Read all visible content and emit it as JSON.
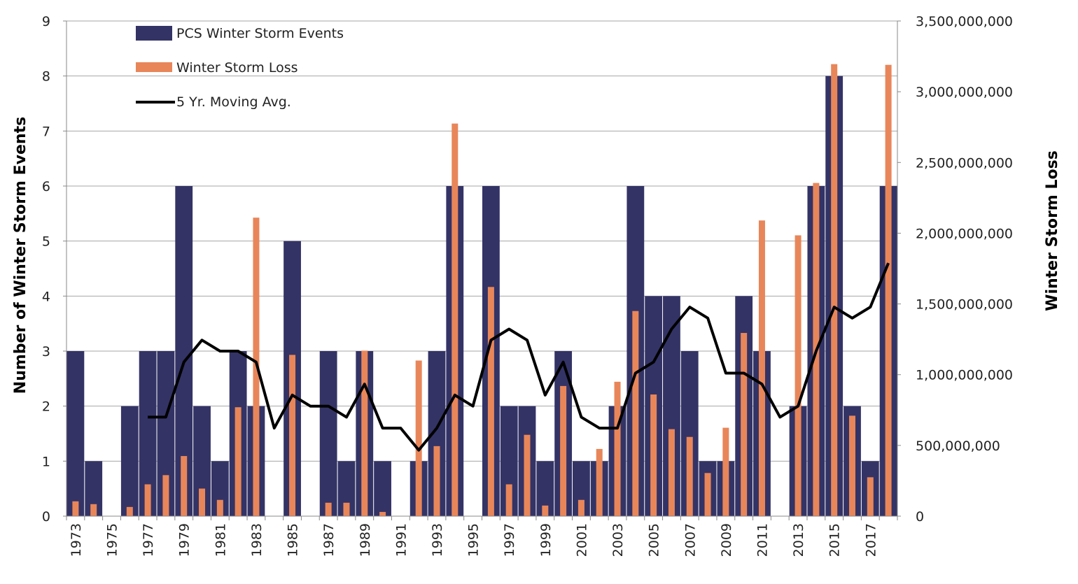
{
  "chart_data": {
    "type": "bar",
    "title": "",
    "ylabel": "Number of Winter Storm Events",
    "y2label": "Winter Storm Loss",
    "ylim": [
      0,
      9
    ],
    "y2lim": [
      0,
      3500000000
    ],
    "y_ticks": [
      "0",
      "1",
      "2",
      "3",
      "4",
      "5",
      "6",
      "7",
      "8",
      "9"
    ],
    "y2_ticks": [
      "0",
      "500,000,000",
      "1,000,000,000",
      "1,500,000,000",
      "2,000,000,000",
      "2,500,000,000",
      "3,000,000,000",
      "3,500,000,000"
    ],
    "x_tick_labels": [
      "1973",
      "1975",
      "1977",
      "1979",
      "1981",
      "1983",
      "1985",
      "1987",
      "1989",
      "1991",
      "1993",
      "1995",
      "1997",
      "1999",
      "2001",
      "2003",
      "2005",
      "2007",
      "2009",
      "2011",
      "2013",
      "2015",
      "2017"
    ],
    "grid": "horizontal",
    "legend_position": "top-left",
    "categories": [
      "1973",
      "1974",
      "1975",
      "1976",
      "1977",
      "1978",
      "1979",
      "1980",
      "1981",
      "1982",
      "1983",
      "1984",
      "1985",
      "1986",
      "1987",
      "1988",
      "1989",
      "1990",
      "1991",
      "1992",
      "1993",
      "1994",
      "1995",
      "1996",
      "1997",
      "1998",
      "1999",
      "2000",
      "2001",
      "2002",
      "2003",
      "2004",
      "2005",
      "2006",
      "2007",
      "2008",
      "2009",
      "2010",
      "2011",
      "2012",
      "2013",
      "2014",
      "2015",
      "2016",
      "2017",
      "2018"
    ],
    "series": [
      {
        "name": "PCS Winter Storm Events",
        "type": "bar",
        "axis": "left",
        "color": "#333366",
        "values": [
          3,
          1,
          0,
          2,
          3,
          3,
          6,
          2,
          1,
          3,
          2,
          0,
          5,
          0,
          3,
          1,
          3,
          1,
          0,
          1,
          3,
          6,
          0,
          6,
          2,
          2,
          1,
          3,
          1,
          1,
          2,
          6,
          4,
          4,
          3,
          1,
          1,
          4,
          3,
          0,
          2,
          6,
          8,
          2,
          1,
          6
        ]
      },
      {
        "name": "Winter Storm Loss",
        "type": "bar",
        "axis": "right",
        "color": "#E8865A",
        "values": [
          105000000,
          85000000,
          0,
          65000000,
          225000000,
          290000000,
          425000000,
          195000000,
          115000000,
          770000000,
          2110000000,
          0,
          1140000000,
          0,
          95000000,
          95000000,
          1170000000,
          30000000,
          0,
          1100000000,
          495000000,
          2775000000,
          0,
          1620000000,
          225000000,
          575000000,
          75000000,
          920000000,
          115000000,
          475000000,
          950000000,
          1450000000,
          860000000,
          615000000,
          560000000,
          305000000,
          625000000,
          1295000000,
          2090000000,
          0,
          1985000000,
          2355000000,
          3195000000,
          710000000,
          275000000,
          3190000000
        ]
      },
      {
        "name": "5 Yr. Moving Avg.",
        "type": "line",
        "axis": "left",
        "color": "#000000",
        "values": [
          null,
          null,
          null,
          null,
          1.8,
          1.8,
          2.8,
          3.2,
          3.0,
          3.0,
          2.8,
          1.6,
          2.2,
          2.0,
          2.0,
          1.8,
          2.4,
          1.6,
          1.6,
          1.2,
          1.6,
          2.2,
          2.0,
          3.2,
          3.4,
          3.2,
          2.2,
          2.8,
          1.8,
          1.6,
          1.6,
          2.6,
          2.8,
          3.4,
          3.8,
          3.6,
          2.6,
          2.6,
          2.4,
          1.8,
          2.0,
          3.0,
          3.8,
          3.6,
          3.8,
          4.6
        ]
      }
    ]
  }
}
